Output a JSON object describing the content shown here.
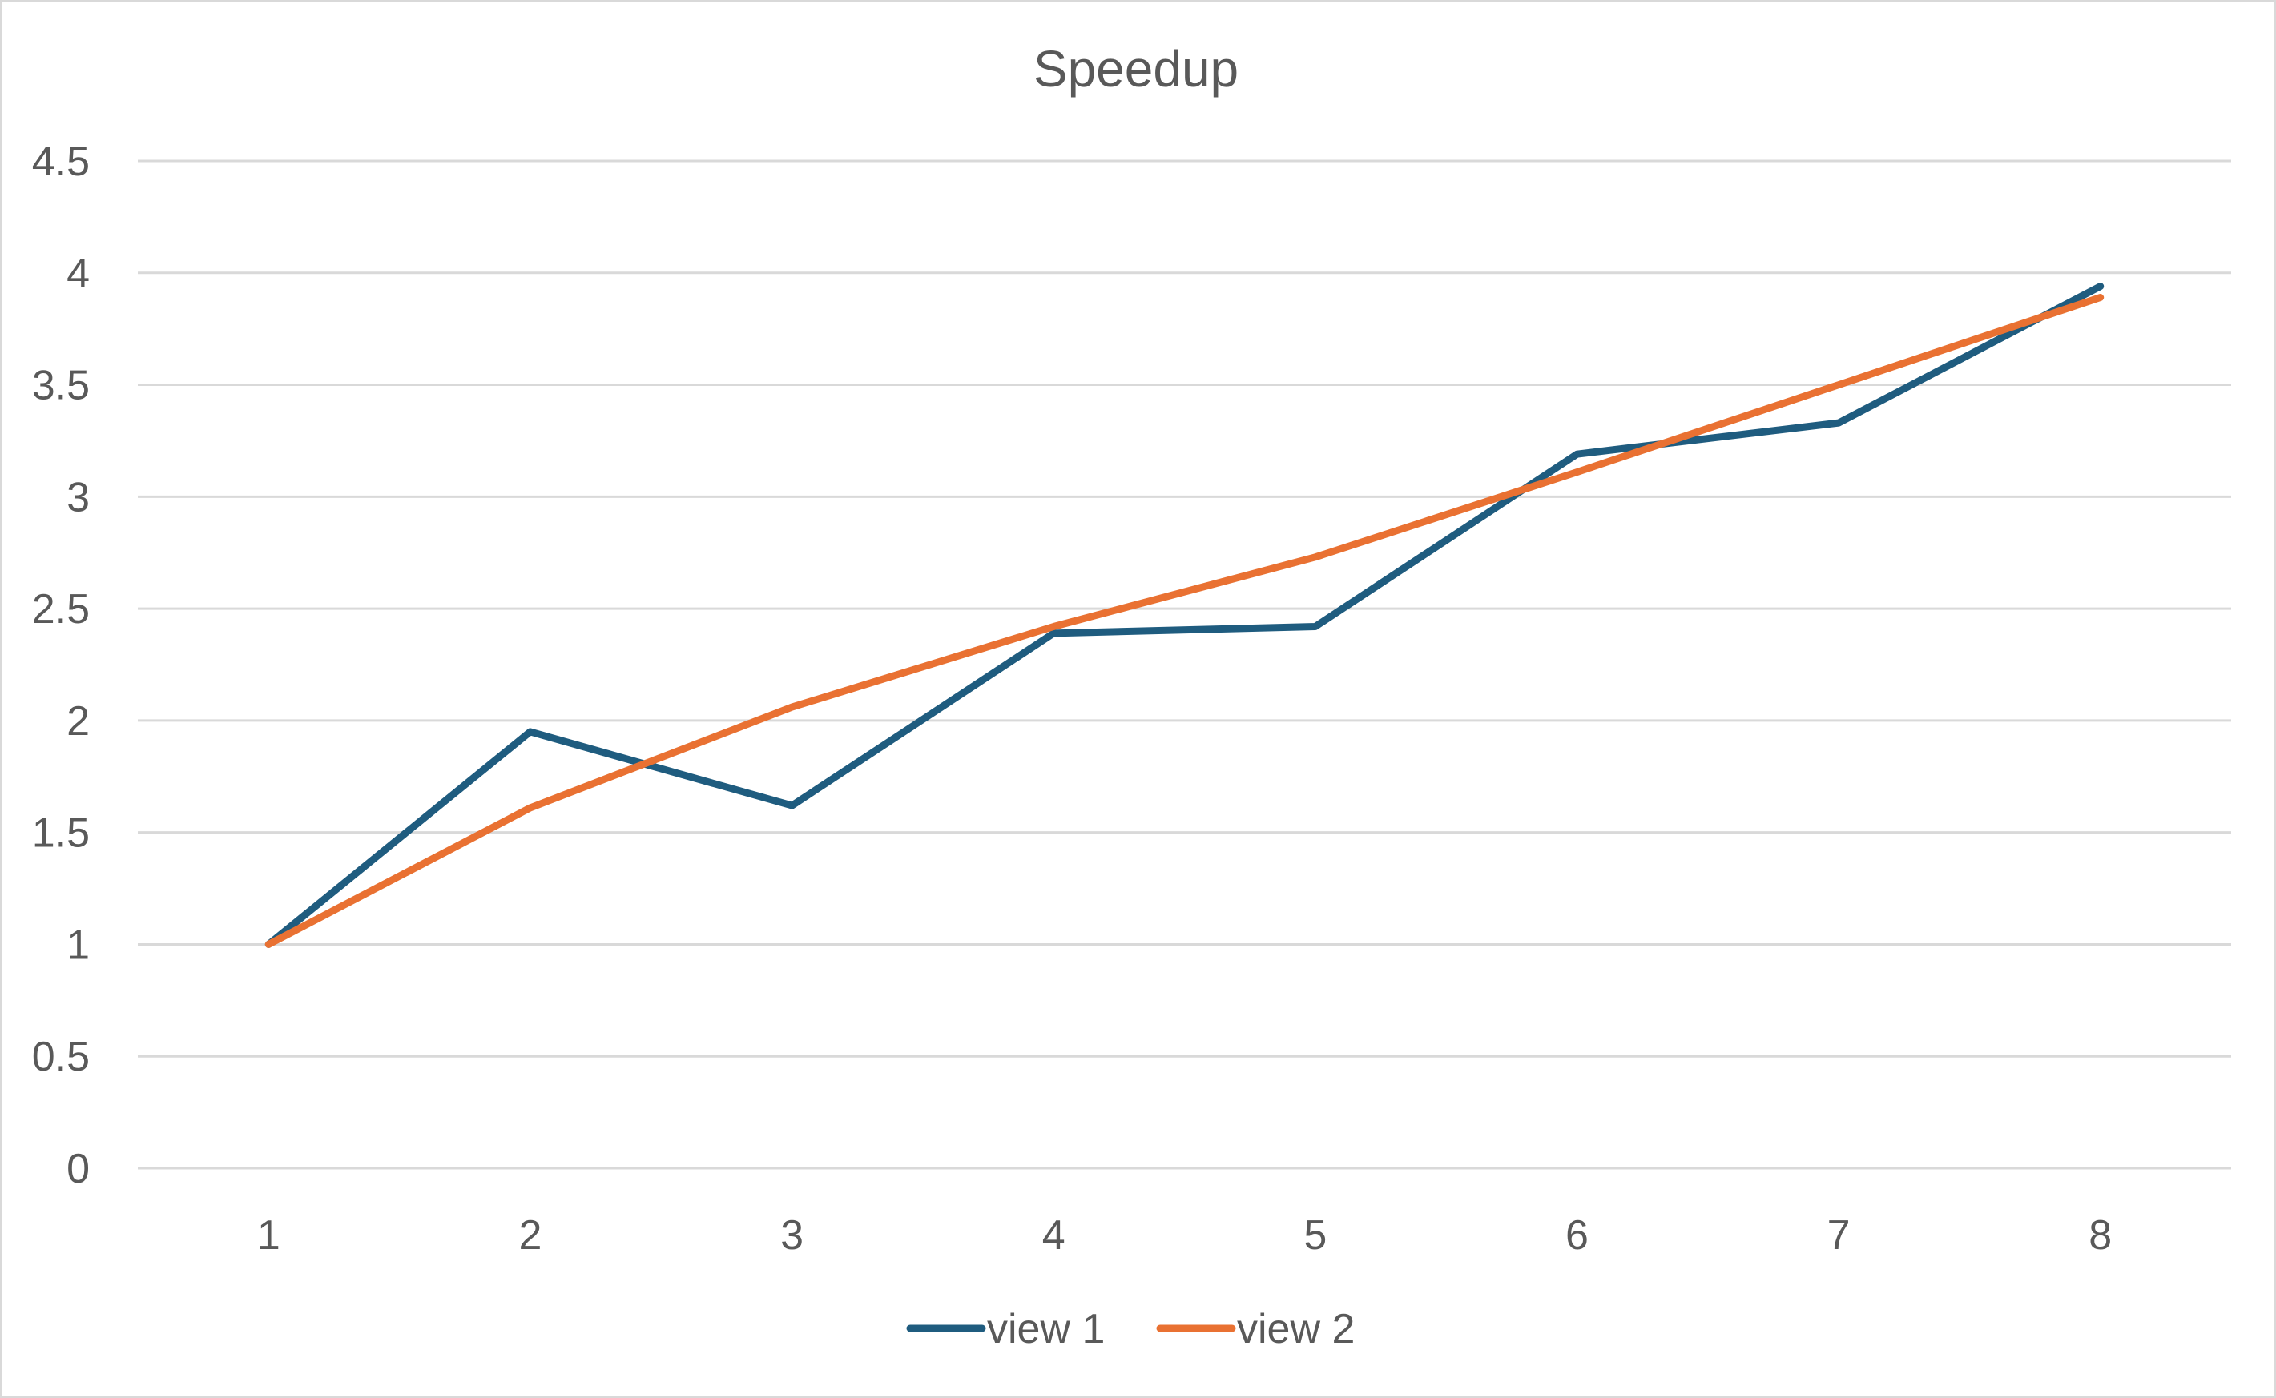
{
  "chart_data": {
    "type": "line",
    "title": "Speedup",
    "xlabel": "",
    "ylabel": "",
    "categories": [
      "1",
      "2",
      "3",
      "4",
      "5",
      "6",
      "7",
      "8"
    ],
    "ylim": [
      0,
      4.5
    ],
    "y_ticks": [
      "0",
      "0.5",
      "1",
      "1.5",
      "2",
      "2.5",
      "3",
      "3.5",
      "4",
      "4.5"
    ],
    "grid": true,
    "legend_position": "bottom",
    "series": [
      {
        "name": "view 1",
        "color": "#1f5c7f",
        "values": [
          1.0,
          1.95,
          1.62,
          2.39,
          2.42,
          3.19,
          3.33,
          3.94
        ]
      },
      {
        "name": "view 2",
        "color": "#e97132",
        "values": [
          1.0,
          1.61,
          2.06,
          2.42,
          2.73,
          3.11,
          3.5,
          3.89
        ]
      }
    ]
  }
}
